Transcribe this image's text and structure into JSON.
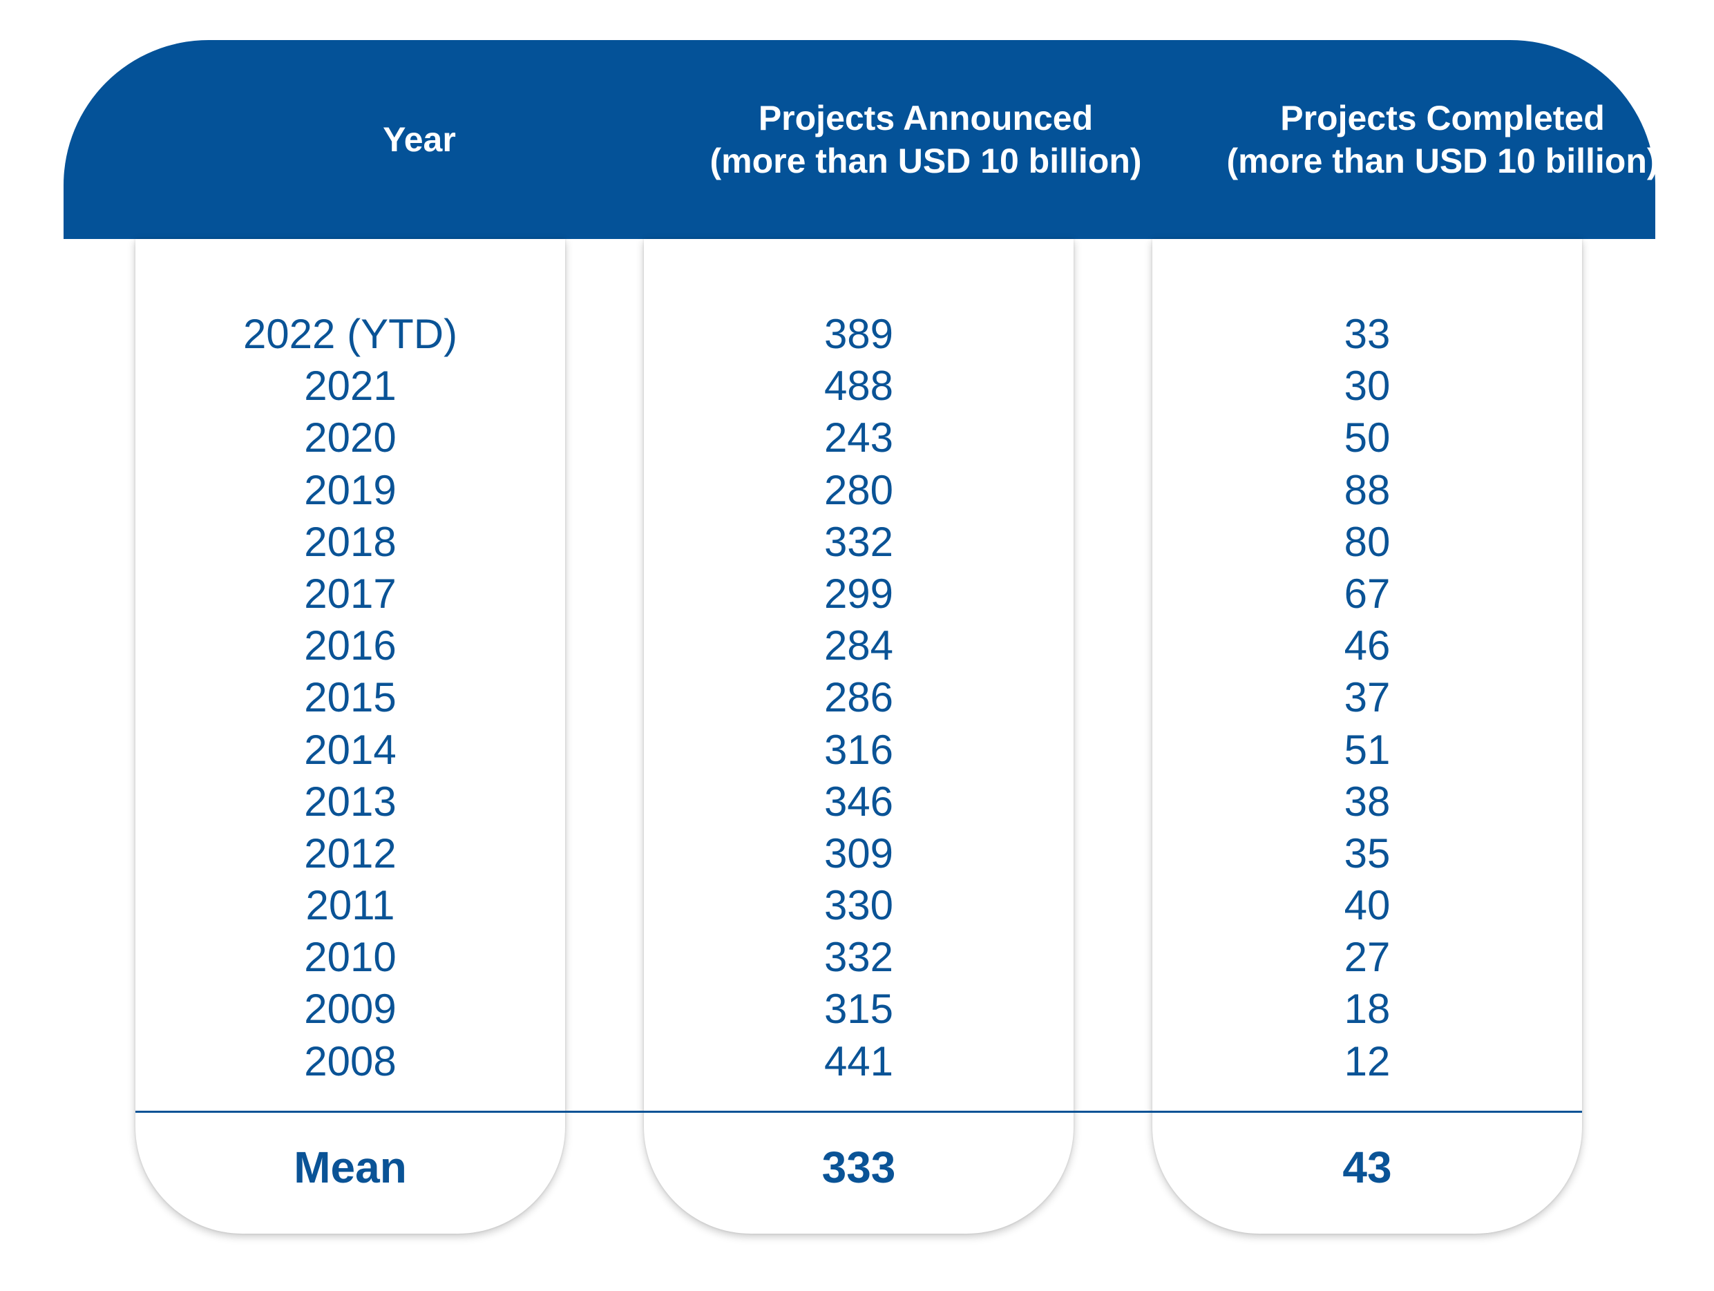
{
  "chart_data": {
    "type": "table",
    "columns": [
      {
        "line1": "Year",
        "line2": ""
      },
      {
        "line1": "Projects Announced",
        "line2": "(more than USD 10 billion)"
      },
      {
        "line1": "Projects Completed",
        "line2": "(more than USD 10 billion)"
      }
    ],
    "rows": [
      [
        "2022 (YTD)",
        "389",
        "33"
      ],
      [
        "2021",
        "488",
        "30"
      ],
      [
        "2020",
        "243",
        "50"
      ],
      [
        "2019",
        "280",
        "88"
      ],
      [
        "2018",
        "332",
        "80"
      ],
      [
        "2017",
        "299",
        "67"
      ],
      [
        "2016",
        "284",
        "46"
      ],
      [
        "2015",
        "286",
        "37"
      ],
      [
        "2014",
        "316",
        "51"
      ],
      [
        "2013",
        "346",
        "38"
      ],
      [
        "2012",
        "309",
        "35"
      ],
      [
        "2011",
        "330",
        "40"
      ],
      [
        "2010",
        "332",
        "27"
      ],
      [
        "2009",
        "315",
        "18"
      ],
      [
        "2008",
        "441",
        "12"
      ]
    ],
    "summary": {
      "label": "Mean",
      "announced": "333",
      "completed": "43"
    }
  },
  "colors": {
    "header_background": "#045298",
    "header_text": "#ffffff",
    "body_text": "#0a5396",
    "card_background": "#ffffff"
  }
}
